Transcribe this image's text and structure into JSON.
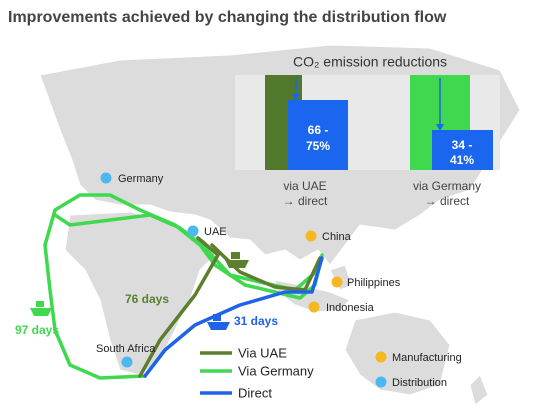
{
  "title": "Improvements achieved by changing the distribution flow",
  "emissions": {
    "title": "CO₂ emission reductions",
    "groups": [
      {
        "value_lines": [
          "66 -",
          "75%"
        ],
        "label_lines": [
          "via UAE",
          "→ direct"
        ]
      },
      {
        "value_lines": [
          "34 -",
          "41%"
        ],
        "label_lines": [
          "via Germany",
          "→ direct"
        ]
      }
    ]
  },
  "places": [
    {
      "label": "Germany"
    },
    {
      "label": "UAE"
    },
    {
      "label": "China"
    },
    {
      "label": "Philippines"
    },
    {
      "label": "Indonesia"
    },
    {
      "label": "South Africa"
    }
  ],
  "routes": [
    {
      "days": "97 days"
    },
    {
      "days": "76 days"
    },
    {
      "days": "31 days"
    }
  ],
  "legend": {
    "routes": [
      "Via UAE",
      "Via Germany",
      "Direct"
    ],
    "points": [
      "Manufacturing",
      "Distribution"
    ]
  }
}
